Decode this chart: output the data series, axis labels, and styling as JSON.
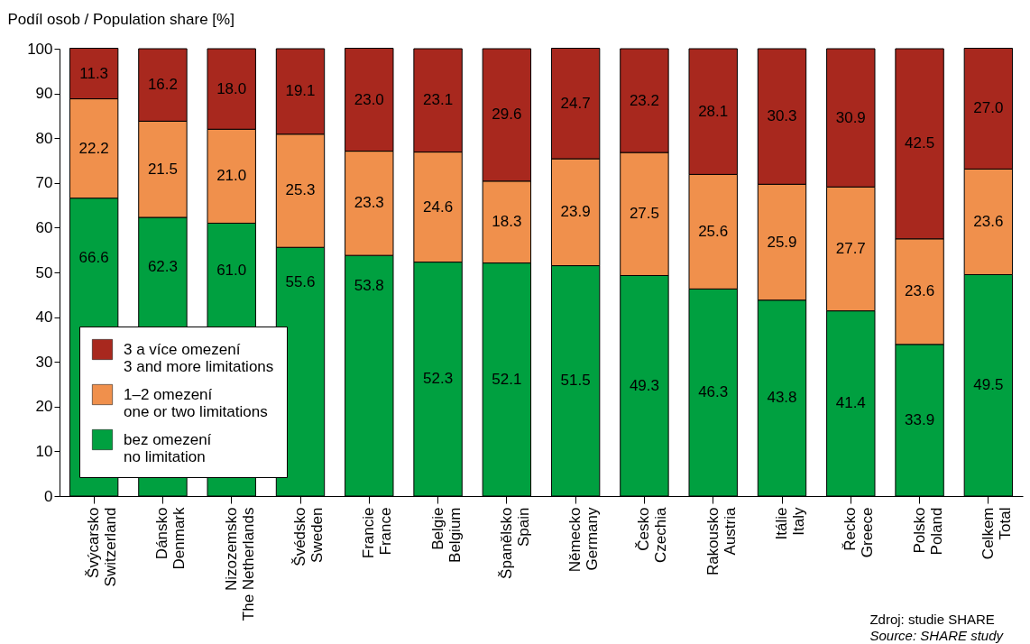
{
  "chart_data": {
    "type": "bar",
    "stacked": true,
    "ylabel": "Podíl osob / Population share [%]",
    "categories": [
      "Švýcarsko\nSwitzerland",
      "Dánsko\nDenmark",
      "Nizozemsko\nThe Netherlands",
      "Švédsko\nSweden",
      "Francie\nFrance",
      "Belgie\nBelgium",
      "Španělsko\nSpain",
      "Německo\nGermany",
      "Česko\nCzechia",
      "Rakousko\nAustria",
      "Itálie\nItaly",
      "Řecko\nGreece",
      "Polsko\nPoland",
      "Celkem\nTotal"
    ],
    "series": [
      {
        "name": "bez omezení\nno limitation",
        "color": "#00a040",
        "values": [
          66.6,
          62.3,
          61.0,
          55.6,
          53.8,
          52.3,
          52.1,
          51.5,
          49.3,
          46.3,
          43.8,
          41.4,
          33.9,
          49.5
        ],
        "value_labels": [
          "66.6",
          "62.3",
          "61.0",
          "55.6",
          "53.8",
          "52.3",
          "52.1",
          "51.5",
          "49.3",
          "46.3",
          "43.8",
          "41.4",
          "33.9",
          "49.5"
        ]
      },
      {
        "name": "1–2 omezení\none or two limitations",
        "color": "#f0904c",
        "values": [
          22.2,
          21.5,
          21.0,
          25.3,
          23.3,
          24.6,
          18.3,
          23.9,
          27.5,
          25.6,
          25.9,
          27.7,
          23.6,
          23.6
        ],
        "value_labels": [
          "22.2",
          "21.5",
          "21.0",
          "25.3",
          "23.3",
          "24.6",
          "18.3",
          "23.9",
          "27.5",
          "25.6",
          "25.9",
          "27.7",
          "23.6",
          "23.6"
        ]
      },
      {
        "name": "3 a více omezení\n3 and more limitations",
        "color": "#a8281e",
        "values": [
          11.3,
          16.2,
          18.0,
          19.1,
          23.0,
          23.1,
          29.6,
          24.7,
          23.2,
          28.1,
          30.3,
          30.9,
          42.5,
          27.0
        ],
        "value_labels": [
          "11.3",
          "16.2",
          "18.0",
          "19.1",
          "23.0",
          "23.1",
          "29.6",
          "24.7",
          "23.2",
          "28.1",
          "30.3",
          "30.9",
          "42.5",
          "27.0"
        ]
      }
    ],
    "ylim": [
      0,
      100
    ],
    "yticks": [
      0,
      10,
      20,
      30,
      40,
      50,
      60,
      70,
      80,
      90,
      100
    ],
    "grid": false,
    "legend": "bottom left",
    "annotations": [
      "Zdroj: studie SHARE\nSource: SHARE study"
    ]
  }
}
